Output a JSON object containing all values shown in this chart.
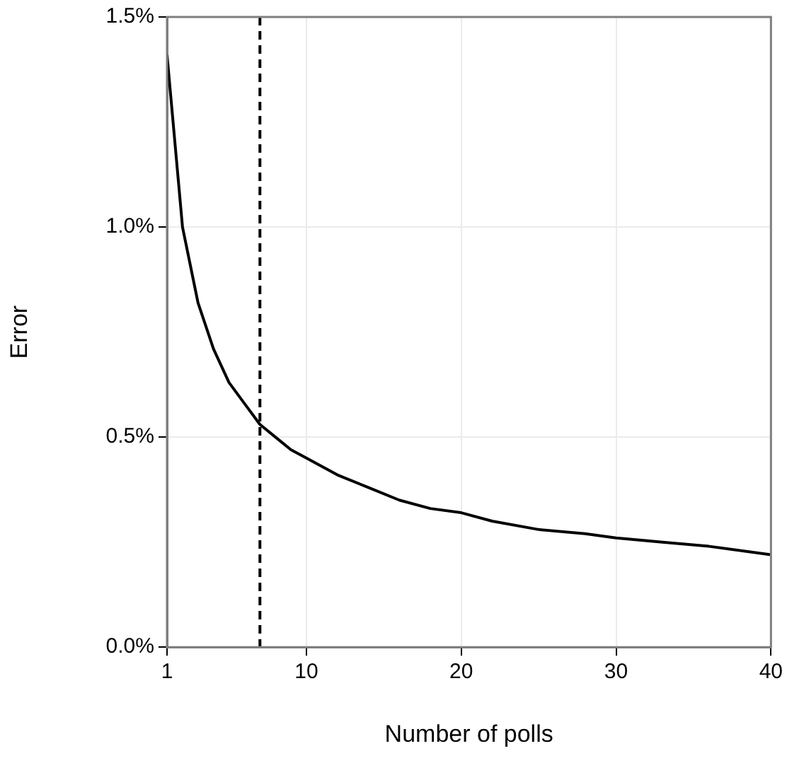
{
  "chart_data": {
    "type": "line",
    "xlabel": "Number of polls",
    "ylabel": "Error",
    "x": [
      1,
      2,
      3,
      4,
      5,
      6,
      7,
      8,
      9,
      10,
      12,
      14,
      16,
      18,
      20,
      22,
      25,
      28,
      30,
      33,
      36,
      40
    ],
    "series": [
      {
        "color": "#000000",
        "values": [
          1.41,
          1.0,
          0.82,
          0.71,
          0.63,
          0.58,
          0.53,
          0.5,
          0.47,
          0.45,
          0.41,
          0.38,
          0.35,
          0.33,
          0.32,
          0.3,
          0.28,
          0.27,
          0.26,
          0.25,
          0.24,
          0.22
        ]
      }
    ],
    "xlim": [
      1,
      40
    ],
    "xticks": [
      1,
      10,
      20,
      30,
      40
    ],
    "ylim": [
      0,
      1.5
    ],
    "yticks": [
      {
        "value": 0,
        "label": "0.0%"
      },
      {
        "value": 0.5,
        "label": "0.5%"
      },
      {
        "value": 1,
        "label": "1.0%"
      },
      {
        "value": 1.5,
        "label": "1.5%"
      }
    ],
    "ref_lines": [
      {
        "axis": "x",
        "value": 7,
        "color": "#000000",
        "line_style": "dashed"
      }
    ],
    "grid": true,
    "legend": false,
    "marker": "none",
    "line_style": "solid"
  }
}
